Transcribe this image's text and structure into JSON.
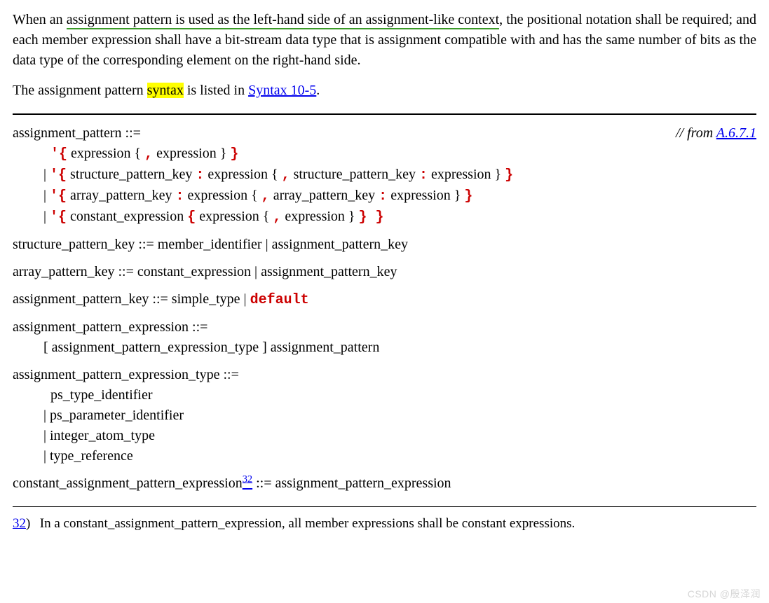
{
  "paragraph1": {
    "pre": "When an ",
    "underlined": "assignment pattern is used as the left-hand side of an assignment-like context",
    "post": ", the positional notation shall be required; and each member expression shall have a bit-stream data type that is assignment compatible with and has the same number of bits as the data type of the corresponding element on the right-hand side."
  },
  "paragraph2": {
    "pre": "The assignment pattern ",
    "hl": "syntax",
    "mid": " is listed in ",
    "link": "Syntax 10-5",
    "post": "."
  },
  "from_ref": {
    "prefix": "// from ",
    "link": "A.6.7.1"
  },
  "grammar": {
    "r1_head": "assignment_pattern ::=",
    "r1_alt1": {
      "a": "'{",
      "b": " expression { ",
      "c": ",",
      "d": " expression } ",
      "e": "}"
    },
    "r1_alt2": {
      "bar": "| ",
      "a": "'{",
      "b": " structure_pattern_key ",
      "c": ":",
      "d": " expression { ",
      "e": ",",
      "f": " structure_pattern_key ",
      "g": ":",
      "h": " expression } ",
      "i": "}"
    },
    "r1_alt3": {
      "bar": "| ",
      "a": "'{",
      "b": " array_pattern_key ",
      "c": ":",
      "d": " expression { ",
      "e": ",",
      "f": " array_pattern_key ",
      "g": ":",
      "h": " expression } ",
      "i": "}"
    },
    "r1_alt4": {
      "bar": "| ",
      "a": "'{",
      "b": " constant_expression ",
      "c": "{",
      "d": " expression { ",
      "e": ",",
      "f": " expression } ",
      "g": "} }"
    },
    "r2": "structure_pattern_key ::= member_identifier | assignment_pattern_key",
    "r3": "array_pattern_key ::= constant_expression | assignment_pattern_key",
    "r4": {
      "a": "assignment_pattern_key ::= simple_type | ",
      "b": "default"
    },
    "r5_head": "assignment_pattern_expression ::=",
    "r5_body": "[ assignment_pattern_expression_type ] assignment_pattern",
    "r6_head": "assignment_pattern_expression_type ::=",
    "r6_a": "ps_type_identifier",
    "r6_b": "| ps_parameter_identifier",
    "r6_c": "| integer_atom_type",
    "r6_d": "| type_reference",
    "r7": {
      "a": "constant_assignment_pattern_expression",
      "sup": "32",
      "b": " ::= assignment_pattern_expression"
    }
  },
  "footnote": {
    "num": "32",
    "paren": ")",
    "text": "In a constant_assignment_pattern_expression, all member expressions shall be constant expressions."
  },
  "watermark": "CSDN @殷泽润",
  "colors": {
    "text": "#000000",
    "background": "#ffffff",
    "underline_green": "#3a9a28",
    "highlight": "#ffff00",
    "link": "#0000ee",
    "keyword_red": "#cc0000",
    "watermark": "#d6d6d6"
  },
  "fonts": {
    "body_family": "Times New Roman",
    "body_size_pt": 15,
    "mono_family": "Courier New"
  }
}
